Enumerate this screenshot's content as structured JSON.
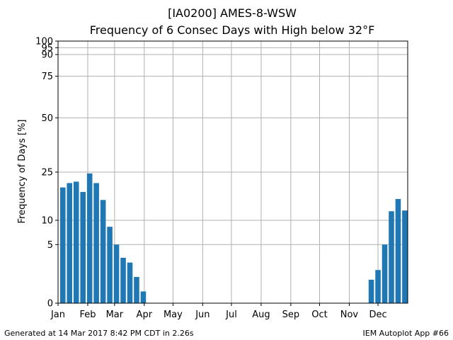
{
  "header": {
    "title_line1": "[IA0200] AMES-8-WSW",
    "title_line2": "Frequency of 6 Consec Days with High below 32°F"
  },
  "footer": {
    "generated": "Generated at 14 Mar 2017 8:42 PM CDT in 2.26s",
    "app": "IEM Autoplot App #66"
  },
  "chart_data": {
    "type": "bar",
    "title": "Frequency of 6 Consec Days with High below 32°F",
    "xlabel": "",
    "ylabel": "Frequency of Days [%]",
    "xlim": [
      1,
      366
    ],
    "ylim": [
      0,
      100
    ],
    "yticks": [
      0,
      5,
      10,
      25,
      50,
      75,
      90,
      95,
      100
    ],
    "y_scale": "sqrt",
    "grid": true,
    "x_tick_days": [
      1,
      32,
      60,
      91,
      121,
      152,
      182,
      213,
      244,
      274,
      305,
      335
    ],
    "x_tick_labels": [
      "Jan",
      "Feb",
      "Mar",
      "Apr",
      "May",
      "Jun",
      "Jul",
      "Aug",
      "Sep",
      "Oct",
      "Nov",
      "Dec"
    ],
    "color": "#1f77b4",
    "bar_width_days": 5.6,
    "bars": [
      {
        "day": 6,
        "value": 19.5
      },
      {
        "day": 13,
        "value": 21.0
      },
      {
        "day": 20,
        "value": 21.5
      },
      {
        "day": 27,
        "value": 18.0
      },
      {
        "day": 34,
        "value": 24.5
      },
      {
        "day": 41,
        "value": 21.0
      },
      {
        "day": 48,
        "value": 15.5
      },
      {
        "day": 55,
        "value": 8.5
      },
      {
        "day": 62,
        "value": 5.0
      },
      {
        "day": 69,
        "value": 3.0
      },
      {
        "day": 76,
        "value": 2.4
      },
      {
        "day": 83,
        "value": 1.0
      },
      {
        "day": 90,
        "value": 0.2
      },
      {
        "day": 328,
        "value": 0.8
      },
      {
        "day": 335,
        "value": 1.6
      },
      {
        "day": 342,
        "value": 5.0
      },
      {
        "day": 349,
        "value": 12.3
      },
      {
        "day": 356,
        "value": 15.8
      },
      {
        "day": 363,
        "value": 12.5
      }
    ]
  }
}
